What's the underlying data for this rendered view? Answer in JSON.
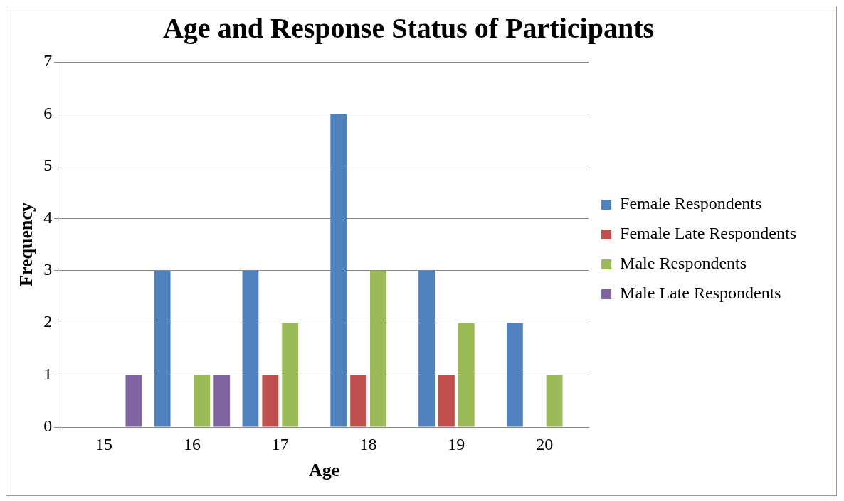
{
  "chart_data": {
    "type": "bar",
    "title": "Age and Response Status of Participants",
    "xlabel": "Age",
    "ylabel": "Frequency",
    "categories": [
      "15",
      "16",
      "17",
      "18",
      "19",
      "20"
    ],
    "series": [
      {
        "name": "Female Respondents",
        "color": "#4f81bd",
        "values": [
          0,
          3,
          3,
          6,
          3,
          2
        ]
      },
      {
        "name": "Female Late Respondents",
        "color": "#c0504d",
        "values": [
          0,
          0,
          1,
          1,
          1,
          0
        ]
      },
      {
        "name": "Male Respondents",
        "color": "#9bbb59",
        "values": [
          0,
          1,
          2,
          3,
          2,
          1
        ]
      },
      {
        "name": "Male Late Respondents",
        "color": "#8064a2",
        "values": [
          1,
          1,
          0,
          0,
          0,
          0
        ]
      }
    ],
    "ylim": [
      0,
      7
    ],
    "yticks": [
      0,
      1,
      2,
      3,
      4,
      5,
      6,
      7
    ],
    "grid": "y",
    "legend": "right"
  }
}
